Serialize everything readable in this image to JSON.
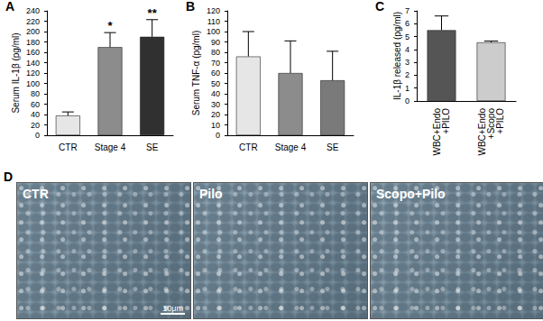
{
  "chart_data": [
    {
      "type": "bar",
      "panel_label": "A",
      "y_label": "Serum IL-1β (pg/ml)",
      "categories": [
        "CTR",
        "Stage 4",
        "SE"
      ],
      "values": [
        38,
        170,
        190
      ],
      "errors": [
        7,
        28,
        33
      ],
      "colors": [
        "#e6e6e6",
        "#8c8c8c",
        "#303030"
      ],
      "annotations": [
        {
          "category": "Stage 4",
          "text": "*"
        },
        {
          "category": "SE",
          "text": "**"
        }
      ],
      "ylim": [
        0,
        240
      ],
      "yticks": [
        0,
        20,
        40,
        60,
        80,
        100,
        120,
        140,
        160,
        180,
        200,
        220,
        240
      ],
      "grid": false
    },
    {
      "type": "bar",
      "panel_label": "B",
      "y_label": "Serum TNF-α (pg/ml)",
      "categories": [
        "CTR",
        "Stage 4",
        "SE"
      ],
      "values": [
        76,
        60,
        53
      ],
      "errors": [
        24,
        31,
        28
      ],
      "colors": [
        "#e6e6e6",
        "#8c8c8c",
        "#7a7a7a"
      ],
      "ylim": [
        0,
        120
      ],
      "yticks": [
        0,
        10,
        20,
        30,
        40,
        50,
        60,
        70,
        80,
        90,
        100,
        110,
        120
      ],
      "grid": false
    },
    {
      "type": "bar",
      "panel_label": "C",
      "y_label": "IL-1β released (pg/ml)",
      "categories": [
        "WBC+Endo +PILO",
        "WBC+Endo +Scopo +PILO"
      ],
      "values": [
        5.5,
        4.55
      ],
      "errors": [
        1.1,
        0.1
      ],
      "colors": [
        "#555555",
        "#cccccc"
      ],
      "ylim": [
        0,
        7
      ],
      "yticks": [
        0,
        1,
        2,
        3,
        4,
        5,
        6,
        7
      ],
      "grid": false
    }
  ],
  "micrographs": {
    "panel_label": "D",
    "images": [
      "CTR",
      "Pilo",
      "Scopo+Pilo"
    ],
    "scale_bar": "10μm"
  }
}
